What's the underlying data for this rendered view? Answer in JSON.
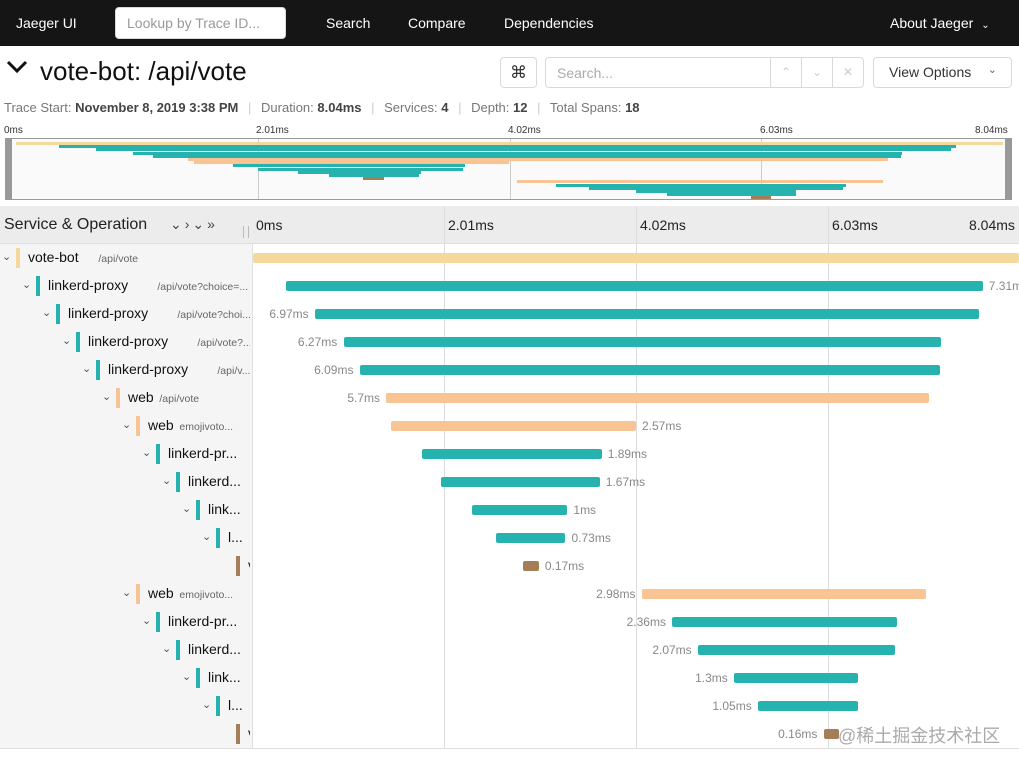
{
  "nav": {
    "brand": "Jaeger UI",
    "lookup_placeholder": "Lookup by Trace ID...",
    "links": [
      "Search",
      "Compare",
      "Dependencies"
    ],
    "about": "About Jaeger"
  },
  "trace": {
    "title": "vote-bot: /api/vote",
    "search_placeholder": "Search...",
    "view_options": "View Options",
    "meta": {
      "start_label": "Trace Start:",
      "start_value": "November 8, 2019 3:38 PM",
      "duration_label": "Duration:",
      "duration_value": "8.04ms",
      "services_label": "Services:",
      "services_value": "4",
      "depth_label": "Depth:",
      "depth_value": "12",
      "spans_label": "Total Spans:",
      "spans_value": "18"
    }
  },
  "minimap_ticks": [
    "0ms",
    "2.01ms",
    "4.02ms",
    "6.03ms",
    "8.04ms"
  ],
  "table": {
    "left_header": "Service & Operation",
    "ticks": [
      "0ms",
      "2.01ms",
      "4.02ms",
      "6.03ms",
      "8.04ms"
    ]
  },
  "colors": {
    "vote_bot": "#f5d89c",
    "proxy": "#26b3b0",
    "web": "#f8c493",
    "voting": "#a47e56"
  },
  "spans": [
    {
      "depth": 0,
      "service": "vote-bot",
      "op": "/api/vote",
      "color": "vote_bot",
      "start": 0.0,
      "duration": 8.04,
      "label": "",
      "label_side": "none"
    },
    {
      "depth": 1,
      "service": "linkerd-proxy",
      "op": "/api/vote?choice=...",
      "color": "proxy",
      "start": 0.35,
      "duration": 7.31,
      "label": "7.31m",
      "label_side": "right"
    },
    {
      "depth": 2,
      "service": "linkerd-proxy",
      "op": "/api/vote?choi...",
      "color": "proxy",
      "start": 0.65,
      "duration": 6.97,
      "label": "6.97ms",
      "label_side": "left"
    },
    {
      "depth": 3,
      "service": "linkerd-proxy",
      "op": "/api/vote?...",
      "color": "proxy",
      "start": 0.95,
      "duration": 6.27,
      "label": "6.27ms",
      "label_side": "left"
    },
    {
      "depth": 4,
      "service": "linkerd-proxy",
      "op": "/api/v...",
      "color": "proxy",
      "start": 1.12,
      "duration": 6.09,
      "label": "6.09ms",
      "label_side": "left"
    },
    {
      "depth": 5,
      "service": "web",
      "op": "/api/vote",
      "color": "web",
      "start": 1.4,
      "duration": 5.7,
      "label": "5.7ms",
      "label_side": "left"
    },
    {
      "depth": 6,
      "service": "web",
      "op": "emojivoto...",
      "color": "web",
      "start": 1.45,
      "duration": 2.57,
      "label": "2.57ms",
      "label_side": "right"
    },
    {
      "depth": 7,
      "service": "linkerd-pr...",
      "op": "",
      "color": "proxy",
      "start": 1.77,
      "duration": 1.89,
      "label": "1.89ms",
      "label_side": "right"
    },
    {
      "depth": 8,
      "service": "linkerd...",
      "op": "",
      "color": "proxy",
      "start": 1.97,
      "duration": 1.67,
      "label": "1.67ms",
      "label_side": "right"
    },
    {
      "depth": 9,
      "service": "link...",
      "op": "",
      "color": "proxy",
      "start": 2.3,
      "duration": 1.0,
      "label": "1ms",
      "label_side": "right"
    },
    {
      "depth": 10,
      "service": "l...",
      "op": "",
      "color": "proxy",
      "start": 2.55,
      "duration": 0.73,
      "label": "0.73ms",
      "label_side": "right"
    },
    {
      "depth": 11,
      "service": "v",
      "op": "",
      "color": "voting",
      "start": 2.83,
      "duration": 0.17,
      "label": "0.17ms",
      "label_side": "right"
    },
    {
      "depth": 6,
      "service": "web",
      "op": "emojivoto...",
      "color": "web",
      "start": 4.08,
      "duration": 2.98,
      "label": "2.98ms",
      "label_side": "left"
    },
    {
      "depth": 7,
      "service": "linkerd-pr...",
      "op": "",
      "color": "proxy",
      "start": 4.4,
      "duration": 2.36,
      "label": "2.36ms",
      "label_side": "left"
    },
    {
      "depth": 8,
      "service": "linkerd...",
      "op": "",
      "color": "proxy",
      "start": 4.67,
      "duration": 2.07,
      "label": "2.07ms",
      "label_side": "left"
    },
    {
      "depth": 9,
      "service": "link...",
      "op": "",
      "color": "proxy",
      "start": 5.05,
      "duration": 1.3,
      "label": "1.3ms",
      "label_side": "left"
    },
    {
      "depth": 10,
      "service": "l...",
      "op": "",
      "color": "proxy",
      "start": 5.3,
      "duration": 1.05,
      "label": "1.05ms",
      "label_side": "left"
    },
    {
      "depth": 11,
      "service": "v",
      "op": "",
      "color": "voting",
      "start": 5.99,
      "duration": 0.16,
      "label": "0.16ms",
      "label_side": "left"
    }
  ],
  "watermark": "@稀土掘金技术社区"
}
